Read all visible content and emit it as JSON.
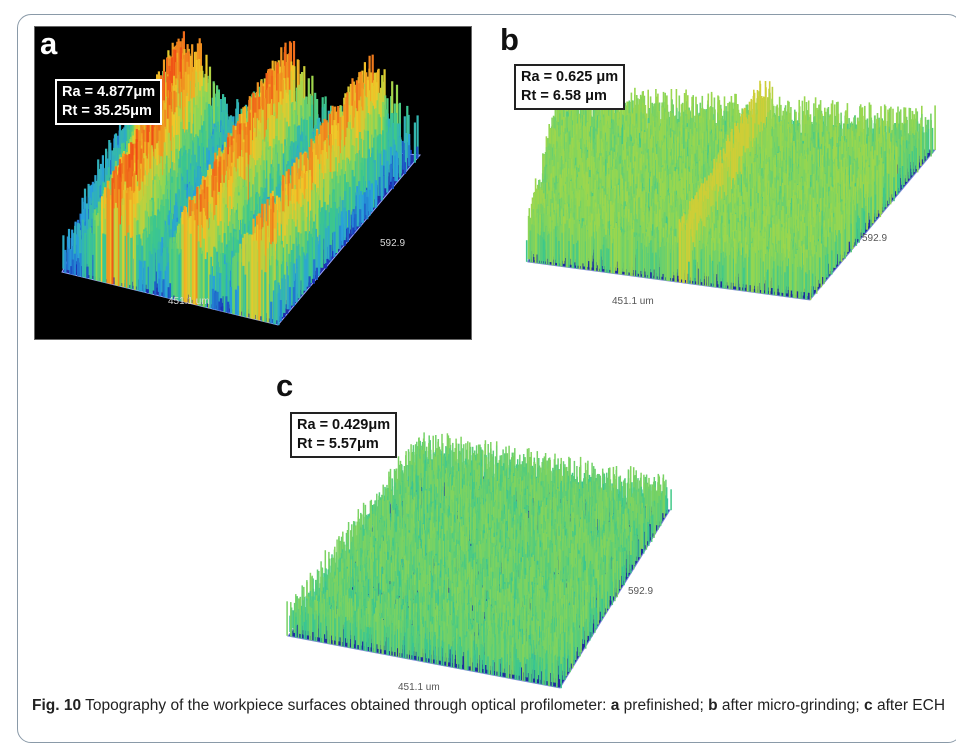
{
  "panels": [
    {
      "letter": "a",
      "ra": "Ra = 4.877μm",
      "rt": "Rt = 35.25μm",
      "x_axis": "451.1 um",
      "y_axis": "592.9"
    },
    {
      "letter": "b",
      "ra": "Ra = 0.625 μm",
      "rt": "Rt = 6.58 μm",
      "x_axis": "451.1 um",
      "y_axis": "592.9"
    },
    {
      "letter": "c",
      "ra": "Ra = 0.429μm",
      "rt": "Rt = 5.57μm",
      "x_axis": "451.1 um",
      "y_axis": "592.9"
    }
  ],
  "caption": {
    "fig_label": "Fig. 10",
    "text_main": " Topography of the workpiece surfaces obtained through optical profilometer: ",
    "a_label": "a",
    "a_text": " prefinished; ",
    "b_label": "b",
    "b_text": " after micro-grinding; ",
    "c_label": "c",
    "c_text": " after ECH"
  },
  "colors": {
    "low": "#1a2fb5",
    "mid": "#3cc48a",
    "high": "#f4551c"
  }
}
